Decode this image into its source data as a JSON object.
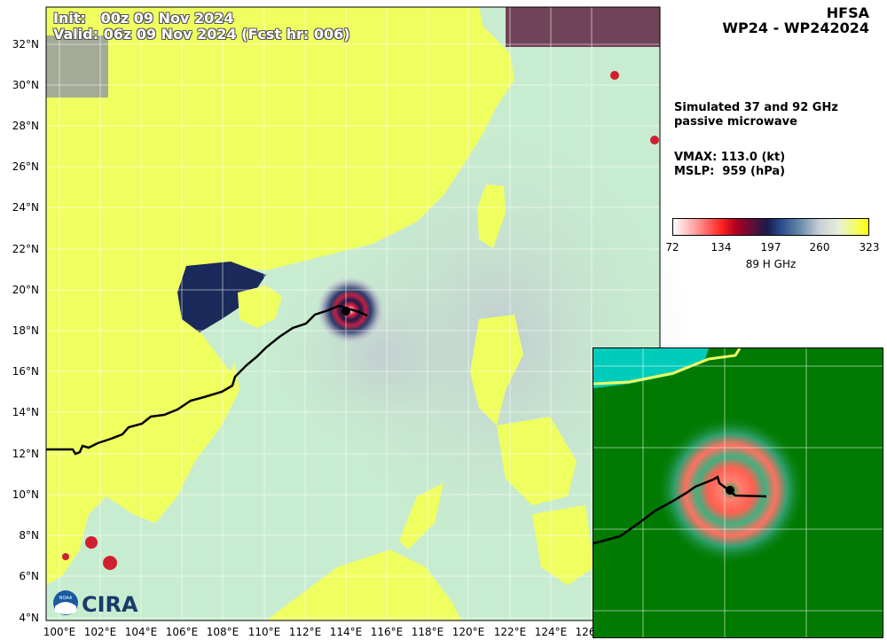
{
  "header": {
    "model": "HFSA",
    "storm": "WP24 - WP242024"
  },
  "overlay": {
    "init": "Init:   00z 09 Nov 2024",
    "valid": "Valid: 06z 09 Nov 2024 (Fcst hr: 006)"
  },
  "info": {
    "desc_line1": "Simulated 37 and 92 GHz",
    "desc_line2": "passive microwave",
    "vmax": "VMAX: 113.0 (kt)",
    "mslp": "MSLP:  959 (hPa)"
  },
  "colorbar": {
    "ticks": [
      "72",
      "134",
      "197",
      "260",
      "323"
    ],
    "title": "89 H GHz"
  },
  "axes": {
    "lat_labels": [
      "32°N",
      "30°N",
      "28°N",
      "26°N",
      "24°N",
      "22°N",
      "20°N",
      "18°N",
      "16°N",
      "14°N",
      "12°N",
      "10°N",
      "8°N",
      "6°N",
      "4°N"
    ],
    "lon_labels": [
      "100°E",
      "102°E",
      "104°E",
      "106°E",
      "108°E",
      "110°E",
      "112°E",
      "114°E",
      "116°E",
      "118°E",
      "120°E",
      "122°E",
      "124°E",
      "126"
    ]
  },
  "logo": {
    "text": "CIRA",
    "noaa": "NOAA"
  },
  "colors": {
    "land": "#f0ff60",
    "ocean": "#c8ecd0",
    "storm_dark": "#1a1a4a",
    "storm_red": "#d02030",
    "inset_bg": "#007a00",
    "inset_red": "#ff7060",
    "track": "#000000"
  }
}
